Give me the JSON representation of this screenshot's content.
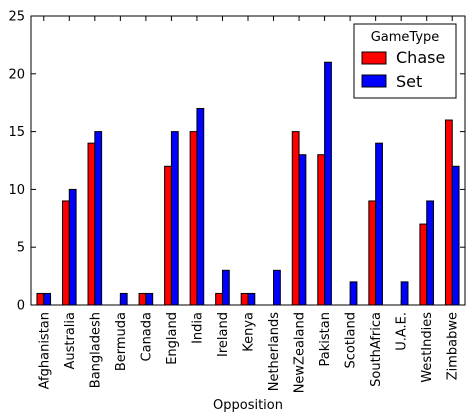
{
  "chart_data": {
    "type": "bar",
    "xlabel": "Opposition",
    "ylabel": "",
    "ylim": [
      0,
      25
    ],
    "yticks": [
      0,
      5,
      10,
      15,
      20,
      25
    ],
    "grid": false,
    "legend": {
      "title": "GameType",
      "placement": "top-right"
    },
    "categories": [
      "Afghanistan",
      "Australia",
      "Bangladesh",
      "Bermuda",
      "Canada",
      "England",
      "India",
      "Ireland",
      "Kenya",
      "Netherlands",
      "NewZealand",
      "Pakistan",
      "Scotland",
      "SouthAfrica",
      "U.A.E.",
      "WestIndies",
      "Zimbabwe"
    ],
    "series": [
      {
        "name": "Chase",
        "color": "#ff0000",
        "values": [
          1,
          9,
          14,
          0,
          1,
          12,
          15,
          1,
          1,
          0,
          15,
          13,
          0,
          9,
          0,
          7,
          16
        ]
      },
      {
        "name": "Set",
        "color": "#0000ff",
        "values": [
          1,
          10,
          15,
          1,
          1,
          15,
          17,
          3,
          1,
          3,
          13,
          21,
          2,
          14,
          2,
          9,
          12
        ]
      }
    ]
  }
}
